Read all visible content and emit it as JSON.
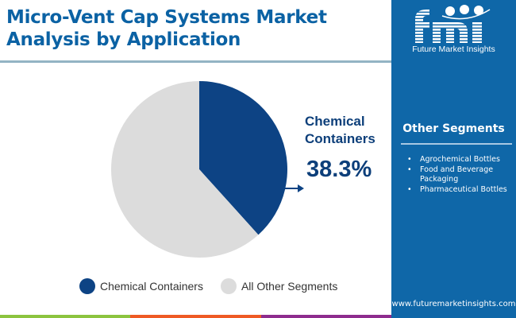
{
  "header": {
    "title_line1": "Micro-Vent Cap Systems Market",
    "title_line2": "Analysis by Application"
  },
  "chart_data": {
    "type": "pie",
    "title": "Micro-Vent Cap Systems Market Analysis by Application",
    "categories": [
      "Chemical Containers",
      "All Other Segments"
    ],
    "values": [
      38.3,
      61.7
    ],
    "unit": "%",
    "colors": [
      "#0d4384",
      "#dcdcdc"
    ],
    "start_angle_deg": 0,
    "direction": "clockwise",
    "legend_position": "bottom",
    "annotations": [
      {
        "label": "Chemical Containers",
        "value": "38.3%"
      }
    ]
  },
  "callout": {
    "label_line1": "Chemical",
    "label_line2": "Containers",
    "value": "38.3%"
  },
  "legend": {
    "items": [
      {
        "label": "Chemical Containers",
        "color": "#0d4384"
      },
      {
        "label": "All Other Segments",
        "color": "#dcdcdc"
      }
    ]
  },
  "side_panel": {
    "brand_mark": "fmi",
    "brand_name": "Future Market Insights",
    "segments_title": "Other Segments",
    "segments": [
      "Agrochemical Bottles",
      "Food and Beverage Packaging",
      "Pharmaceutical Bottles"
    ],
    "website": "www.futuremarketinsights.com"
  },
  "colors": {
    "title": "#0b62a4",
    "panel": "#0f67a8",
    "accent_dark": "#0d4384",
    "bar_green": "#8cc43f",
    "bar_orange": "#ef5a24",
    "bar_purple": "#8e2c8e"
  }
}
